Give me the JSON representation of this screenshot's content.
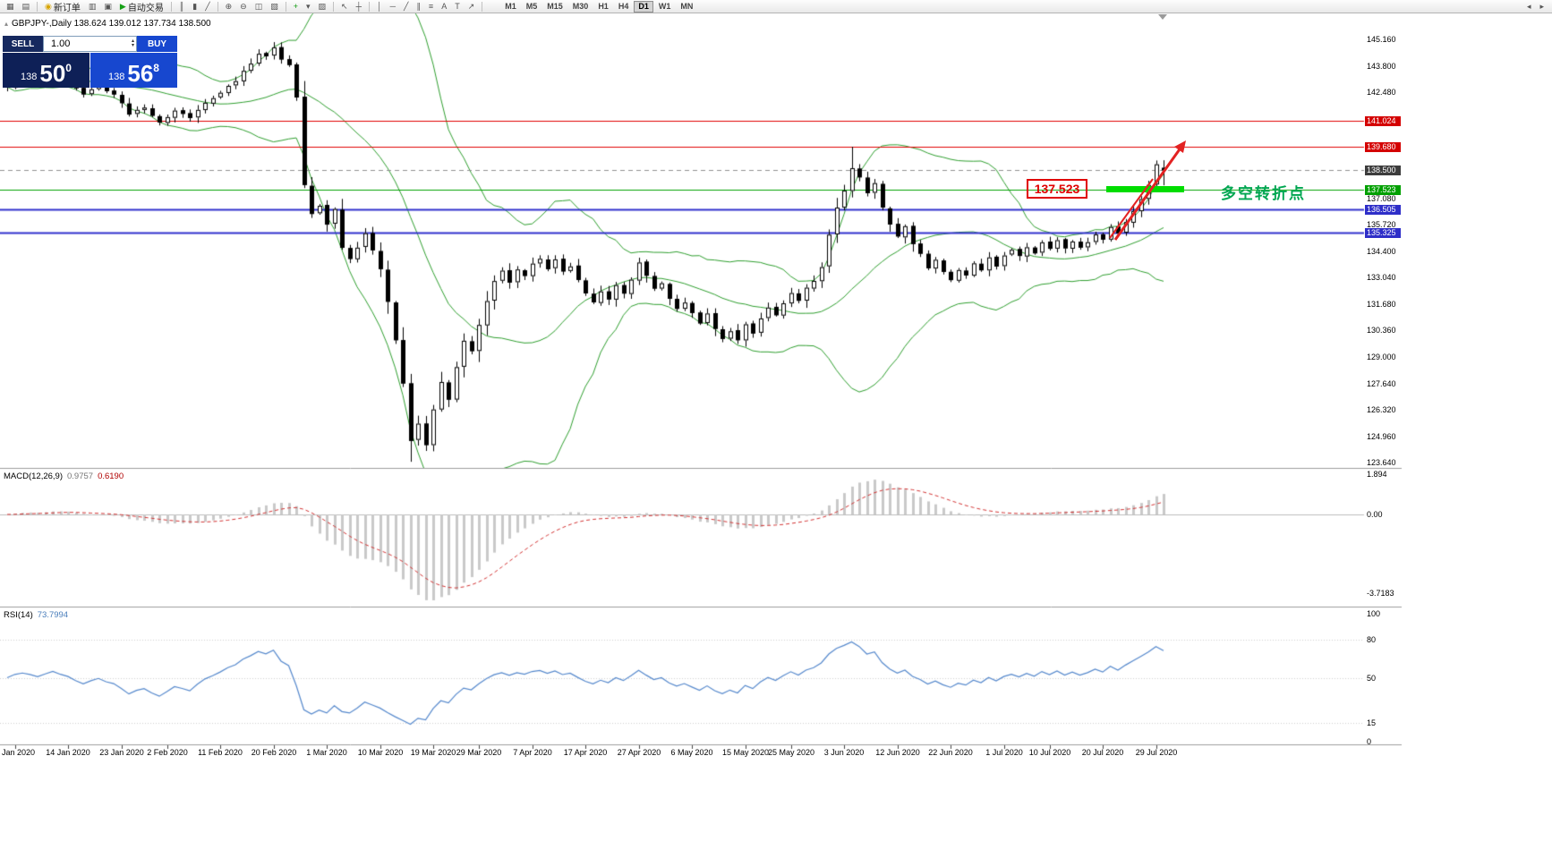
{
  "toolbar": {
    "groups": [
      {
        "items": [
          {
            "name": "new-chart-button",
            "icon": "new-chart-icon",
            "glyph": "▦"
          },
          {
            "name": "profiles-button",
            "icon": "profiles-icon",
            "glyph": "▤"
          }
        ]
      },
      {
        "items": [
          {
            "name": "new-order-button",
            "icon": "coin-icon",
            "glyph": "◉",
            "glyph_color": "#d8a400",
            "label": "新订单"
          },
          {
            "name": "market-watch-button",
            "icon": "market-watch-icon",
            "glyph": "▥"
          },
          {
            "name": "data-window-button",
            "icon": "data-window-icon",
            "glyph": "▣"
          },
          {
            "name": "autotrading-button",
            "icon": "autotrading-play-icon",
            "glyph": "▶",
            "glyph_color": "#15a015",
            "label": "自动交易"
          }
        ]
      },
      {
        "items": [
          {
            "name": "bar-chart-button",
            "icon": "bar-chart-icon",
            "glyph": "║"
          },
          {
            "name": "candle-chart-button",
            "icon": "candlestick-icon",
            "glyph": "▮"
          },
          {
            "name": "line-chart-button",
            "icon": "line-chart-icon",
            "glyph": "╱"
          }
        ]
      },
      {
        "items": [
          {
            "name": "zoom-in-button",
            "icon": "zoom-in-icon",
            "glyph": "⊕"
          },
          {
            "name": "zoom-out-button",
            "icon": "zoom-out-icon",
            "glyph": "⊖"
          },
          {
            "name": "tile-windows-button",
            "icon": "tile-windows-icon",
            "glyph": "◫"
          },
          {
            "name": "cascade-windows-button",
            "icon": "cascade-windows-icon",
            "glyph": "▧"
          }
        ]
      },
      {
        "items": [
          {
            "name": "indicators-button",
            "icon": "indicators-plus-icon",
            "glyph": "+",
            "glyph_color": "#0c9a0c"
          },
          {
            "name": "periods-button",
            "icon": "chevron-down-icon",
            "glyph": "▾"
          },
          {
            "name": "templates-button",
            "icon": "templates-icon",
            "glyph": "▨"
          }
        ]
      },
      {
        "items": [
          {
            "name": "cursor-button",
            "icon": "cursor-icon",
            "glyph": "↖"
          },
          {
            "name": "crosshair-button",
            "icon": "crosshair-icon",
            "glyph": "┼"
          }
        ]
      },
      {
        "items": [
          {
            "name": "vertical-line-button",
            "icon": "vertical-line-icon",
            "glyph": "│"
          },
          {
            "name": "horizontal-line-button",
            "icon": "horizontal-line-icon",
            "glyph": "─"
          },
          {
            "name": "trendline-button",
            "icon": "trendline-icon",
            "glyph": "╱"
          },
          {
            "name": "channel-button",
            "icon": "channel-icon",
            "glyph": "∥"
          },
          {
            "name": "fibonacci-button",
            "icon": "fibonacci-icon",
            "glyph": "≡"
          },
          {
            "name": "text-button",
            "icon": "text-icon",
            "glyph": "A"
          },
          {
            "name": "label-button",
            "icon": "label-icon",
            "glyph": "T"
          },
          {
            "name": "arrows-button",
            "icon": "arrow-icon",
            "glyph": "↗"
          }
        ]
      }
    ],
    "timeframes": [
      "M1",
      "M5",
      "M15",
      "M30",
      "H1",
      "H4",
      "D1",
      "W1",
      "MN"
    ],
    "timeframe_active": "D1",
    "right_icons": [
      {
        "name": "toolbar-extra-left-button",
        "glyph": "◂"
      },
      {
        "name": "toolbar-extra-right-button",
        "glyph": "▸"
      }
    ]
  },
  "chart": {
    "collapse_glyph": "▴",
    "symbol_title": "GBPJPY-,Daily 138.624 139.012 137.734 138.500"
  },
  "trade_panel": {
    "sell_label": "SELL",
    "buy_label": "BUY",
    "volume": "1.00",
    "bid": {
      "prefix": "138",
      "big": "50",
      "sup": "0"
    },
    "ask": {
      "prefix": "138",
      "big": "56",
      "sup": "8"
    }
  },
  "indicator_labels": {
    "macd_name": "MACD(12,26,9)",
    "macd_main": "0.9757",
    "macd_signal": "0.6190",
    "rsi_name": "RSI(14)",
    "rsi_value": "73.7994"
  },
  "annotations": {
    "price_box": "137.523",
    "note_text": "多空转折点",
    "highlight_color": "#00dd00",
    "arrow_color": "#e32222",
    "price_box_color": "#e00000",
    "note_color": "#00a651"
  },
  "price_axis": {
    "items": [
      [
        "145.160",
        145.16,
        "plain"
      ],
      [
        "143.800",
        143.8,
        "plain"
      ],
      [
        "142.480",
        142.48,
        "plain"
      ],
      [
        "141.024",
        141.024,
        "red"
      ],
      [
        "139.680",
        139.68,
        "red"
      ],
      [
        "138.500",
        138.5,
        "dark"
      ],
      [
        "137.523",
        137.523,
        "green"
      ],
      [
        "137.080",
        137.08,
        "plain"
      ],
      [
        "136.505",
        136.505,
        "blue"
      ],
      [
        "135.720",
        135.72,
        "plain"
      ],
      [
        "135.325",
        135.325,
        "blue"
      ],
      [
        "134.400",
        134.4,
        "plain"
      ],
      [
        "133.040",
        133.04,
        "plain"
      ],
      [
        "131.680",
        131.68,
        "plain"
      ],
      [
        "130.360",
        130.36,
        "plain"
      ],
      [
        "129.000",
        129.0,
        "plain"
      ],
      [
        "127.640",
        127.64,
        "plain"
      ],
      [
        "126.320",
        126.32,
        "plain"
      ],
      [
        "124.960",
        124.96,
        "plain"
      ],
      [
        "123.640",
        123.64,
        "plain"
      ]
    ]
  },
  "macd_axis": {
    "items": [
      [
        "1.894",
        1.894
      ],
      [
        "0.00",
        0
      ],
      [
        "-3.7183",
        -3.7183
      ]
    ]
  },
  "rsi_axis": {
    "items": [
      [
        "100",
        100
      ],
      [
        "80",
        80
      ],
      [
        "50",
        50
      ],
      [
        "15",
        15
      ],
      [
        "0",
        0
      ]
    ]
  },
  "date_axis": {
    "items": [
      [
        "Jan 2020",
        1
      ],
      [
        "14 Jan 2020",
        8
      ],
      [
        "23 Jan 2020",
        15
      ],
      [
        "2 Feb 2020",
        21
      ],
      [
        "11 Feb 2020",
        28
      ],
      [
        "20 Feb 2020",
        35
      ],
      [
        "1 Mar 2020",
        42
      ],
      [
        "10 Mar 2020",
        49
      ],
      [
        "19 Mar 2020",
        56
      ],
      [
        "29 Mar 2020",
        62
      ],
      [
        "7 Apr 2020",
        69
      ],
      [
        "17 Apr 2020",
        76
      ],
      [
        "27 Apr 2020",
        83
      ],
      [
        "6 May 2020",
        90
      ],
      [
        "15 May 2020",
        97
      ],
      [
        "25 May 2020",
        103
      ],
      [
        "3 Jun 2020",
        110
      ],
      [
        "12 Jun 2020",
        117
      ],
      [
        "22 Jun 2020",
        124
      ],
      [
        "1 Jul 2020",
        131
      ],
      [
        "10 Jul 2020",
        137
      ],
      [
        "20 Jul 2020",
        144
      ],
      [
        "29 Jul 2020",
        151
      ]
    ]
  },
  "chart_data": {
    "type": "candlestick",
    "symbol": "GBPJPY-",
    "timeframe": "Daily",
    "visible_ohlc": {
      "open": 138.624,
      "high": 139.012,
      "low": 137.734,
      "close": 138.5
    },
    "y_axis_range": [
      123.64,
      145.16
    ],
    "candle_count": 153,
    "levels": [
      {
        "price": 141.024,
        "color": "#e00000",
        "width": 1
      },
      {
        "price": 139.68,
        "color": "#e00000",
        "width": 1
      },
      {
        "price": 138.5,
        "color": "#909090",
        "width": 1,
        "dash": [
          5,
          4
        ]
      },
      {
        "price": 137.523,
        "color": "#00a000",
        "width": 1
      },
      {
        "price": 136.505,
        "color": "#3131cd",
        "width": 2
      },
      {
        "price": 135.325,
        "color": "#3131cd",
        "width": 2
      }
    ],
    "bollinger": {
      "period": 20,
      "deviation": 2,
      "color": "#2e9e2e"
    },
    "macd": {
      "params": [
        12,
        26,
        9
      ],
      "current_main": 0.9757,
      "current_signal": 0.619,
      "axis_max": 1.894,
      "axis_min": -3.7183,
      "histogram_color": "#c9c9c9",
      "signal_color": "#d23333"
    },
    "rsi": {
      "period": 14,
      "current": 73.7994,
      "levels": [
        80,
        50,
        15
      ],
      "color": "#5588cc"
    },
    "price_path_waypoints": [
      [
        0,
        142.8
      ],
      [
        2,
        143.4
      ],
      [
        4,
        142.9
      ],
      [
        6,
        143.6
      ],
      [
        8,
        143.0
      ],
      [
        10,
        142.3
      ],
      [
        12,
        142.8
      ],
      [
        14,
        142.4
      ],
      [
        16,
        141.4
      ],
      [
        18,
        141.7
      ],
      [
        20,
        140.9
      ],
      [
        22,
        141.5
      ],
      [
        24,
        141.2
      ],
      [
        26,
        141.9
      ],
      [
        28,
        142.4
      ],
      [
        30,
        143.1
      ],
      [
        32,
        143.9
      ],
      [
        33,
        144.5
      ],
      [
        34,
        144.3
      ],
      [
        35,
        144.7
      ],
      [
        36,
        144.2
      ],
      [
        37,
        143.8
      ],
      [
        38,
        142.2
      ],
      [
        39,
        137.8
      ],
      [
        40,
        136.3
      ],
      [
        41,
        136.7
      ],
      [
        42,
        135.8
      ],
      [
        43,
        136.5
      ],
      [
        44,
        134.5
      ],
      [
        45,
        134.0
      ],
      [
        46,
        134.6
      ],
      [
        47,
        135.3
      ],
      [
        48,
        134.5
      ],
      [
        49,
        133.5
      ],
      [
        50,
        131.8
      ],
      [
        51,
        129.8
      ],
      [
        52,
        127.6
      ],
      [
        53,
        124.8
      ],
      [
        54,
        125.6
      ],
      [
        55,
        124.6
      ],
      [
        56,
        126.3
      ],
      [
        57,
        127.8
      ],
      [
        58,
        126.9
      ],
      [
        59,
        128.5
      ],
      [
        60,
        129.8
      ],
      [
        61,
        129.3
      ],
      [
        62,
        130.6
      ],
      [
        63,
        131.8
      ],
      [
        64,
        132.9
      ],
      [
        65,
        133.4
      ],
      [
        66,
        132.8
      ],
      [
        67,
        133.5
      ],
      [
        68,
        133.1
      ],
      [
        69,
        133.8
      ],
      [
        70,
        134.0
      ],
      [
        71,
        133.5
      ],
      [
        72,
        133.9
      ],
      [
        73,
        133.3
      ],
      [
        74,
        133.6
      ],
      [
        75,
        132.9
      ],
      [
        76,
        132.2
      ],
      [
        77,
        131.8
      ],
      [
        78,
        132.4
      ],
      [
        79,
        132.0
      ],
      [
        80,
        132.7
      ],
      [
        81,
        132.3
      ],
      [
        82,
        132.9
      ],
      [
        83,
        133.8
      ],
      [
        84,
        133.2
      ],
      [
        85,
        132.5
      ],
      [
        86,
        132.8
      ],
      [
        87,
        132.0
      ],
      [
        88,
        131.4
      ],
      [
        89,
        131.8
      ],
      [
        90,
        131.2
      ],
      [
        91,
        130.7
      ],
      [
        92,
        131.3
      ],
      [
        93,
        130.5
      ],
      [
        94,
        129.9
      ],
      [
        95,
        130.3
      ],
      [
        96,
        129.8
      ],
      [
        97,
        130.6
      ],
      [
        98,
        130.2
      ],
      [
        99,
        130.9
      ],
      [
        100,
        131.5
      ],
      [
        101,
        131.2
      ],
      [
        102,
        131.8
      ],
      [
        103,
        132.2
      ],
      [
        104,
        131.8
      ],
      [
        105,
        132.5
      ],
      [
        106,
        132.9
      ],
      [
        107,
        133.6
      ],
      [
        108,
        135.2
      ],
      [
        109,
        136.6
      ],
      [
        110,
        137.4
      ],
      [
        111,
        138.6
      ],
      [
        112,
        138.2
      ],
      [
        113,
        137.3
      ],
      [
        114,
        137.8
      ],
      [
        115,
        136.6
      ],
      [
        116,
        135.8
      ],
      [
        117,
        135.2
      ],
      [
        118,
        135.7
      ],
      [
        119,
        134.8
      ],
      [
        120,
        134.2
      ],
      [
        121,
        133.6
      ],
      [
        122,
        133.9
      ],
      [
        123,
        133.3
      ],
      [
        124,
        132.9
      ],
      [
        125,
        133.5
      ],
      [
        126,
        133.2
      ],
      [
        127,
        133.7
      ],
      [
        128,
        133.4
      ],
      [
        129,
        134.0
      ],
      [
        130,
        133.6
      ],
      [
        131,
        134.2
      ],
      [
        132,
        134.5
      ],
      [
        133,
        134.1
      ],
      [
        134,
        134.6
      ],
      [
        135,
        134.3
      ],
      [
        136,
        134.8
      ],
      [
        137,
        134.5
      ],
      [
        138,
        135.0
      ],
      [
        139,
        134.6
      ],
      [
        140,
        134.9
      ],
      [
        141,
        134.5
      ],
      [
        142,
        134.8
      ],
      [
        143,
        135.2
      ],
      [
        144,
        135.0
      ],
      [
        145,
        135.6
      ],
      [
        146,
        135.3
      ],
      [
        147,
        135.9
      ],
      [
        148,
        136.4
      ],
      [
        149,
        137.0
      ],
      [
        150,
        137.8
      ],
      [
        151,
        138.8
      ],
      [
        152,
        138.5
      ]
    ],
    "pins": [
      {
        "index": 35,
        "high": 145.02
      },
      {
        "index": 53,
        "low": 123.68
      },
      {
        "index": 111,
        "high": 139.7
      },
      {
        "index": 151,
        "high": 139.0
      },
      {
        "index": 152,
        "open": 138.624,
        "high": 139.012,
        "low": 137.734,
        "close": 138.5
      }
    ]
  }
}
